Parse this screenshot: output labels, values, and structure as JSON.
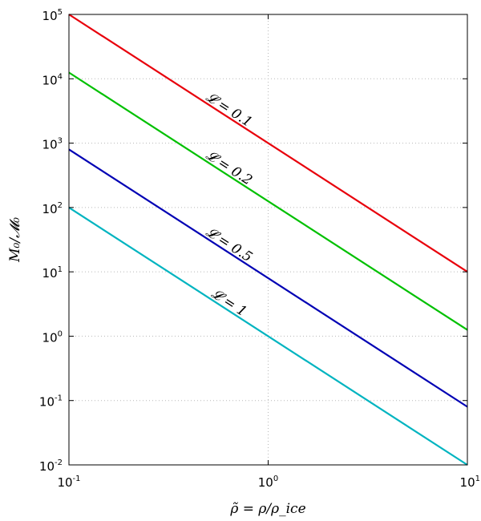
{
  "chart_data": {
    "type": "line",
    "title": "",
    "xlabel": "ρ̃ = ρ/ρ_ice",
    "ylabel": "M₀/𝓜₀",
    "x_scale": "log",
    "y_scale": "log",
    "xlim": [
      0.1,
      10
    ],
    "ylim": [
      0.01,
      100000
    ],
    "grid": true,
    "legend": "none",
    "x_ticks": [
      {
        "base": "10",
        "exp": "-1",
        "value": 0.1
      },
      {
        "base": "10",
        "exp": "0",
        "value": 1
      },
      {
        "base": "10",
        "exp": "1",
        "value": 10
      }
    ],
    "y_ticks": [
      {
        "base": "10",
        "exp": "-2",
        "value": 0.01
      },
      {
        "base": "10",
        "exp": "-1",
        "value": 0.1
      },
      {
        "base": "10",
        "exp": "0",
        "value": 1
      },
      {
        "base": "10",
        "exp": "1",
        "value": 10
      },
      {
        "base": "10",
        "exp": "2",
        "value": 100
      },
      {
        "base": "10",
        "exp": "3",
        "value": 1000
      },
      {
        "base": "10",
        "exp": "4",
        "value": 10000
      },
      {
        "base": "10",
        "exp": "5",
        "value": 100000
      }
    ],
    "series": [
      {
        "label": "𝓛 = 0.1",
        "color": "#e8000b",
        "x": [
          0.1,
          10
        ],
        "y": [
          100000,
          10
        ],
        "label_at_x": 0.62
      },
      {
        "label": "𝓛 = 0.2",
        "color": "#00c000",
        "x": [
          0.1,
          10
        ],
        "y": [
          12500,
          1.25
        ],
        "label_at_x": 0.62
      },
      {
        "label": "𝓛 = 0.5",
        "color": "#0000b4",
        "x": [
          0.1,
          10
        ],
        "y": [
          800,
          0.08
        ],
        "label_at_x": 0.62
      },
      {
        "label": "𝓛 = 1",
        "color": "#00b4c0",
        "x": [
          0.1,
          10
        ],
        "y": [
          100,
          0.01
        ],
        "label_at_x": 0.62
      }
    ]
  }
}
